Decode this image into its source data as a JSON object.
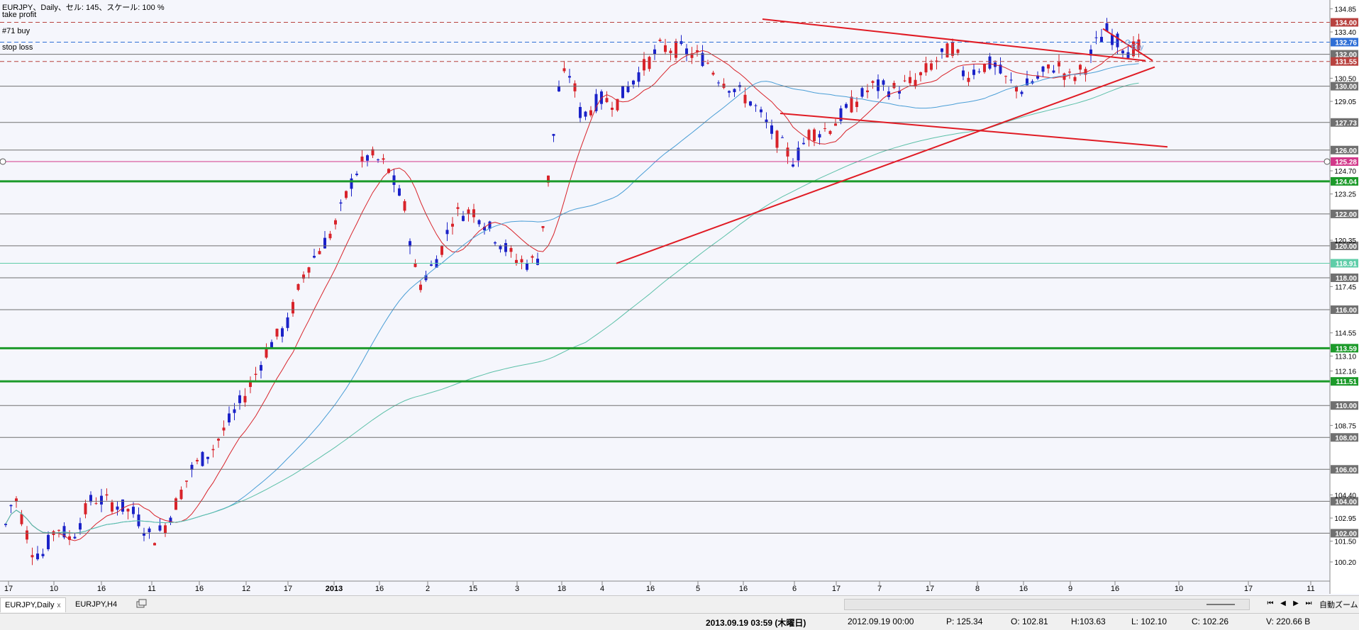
{
  "header": {
    "title": "EURJPY、Daily、セル: 145、スケール: 100 %",
    "take_profit_label": "take profit",
    "order_label": "#71 buy",
    "stop_loss_label": "stop loss",
    "order_marker_label": "Buy"
  },
  "chart_data": {
    "type": "candlestick",
    "symbol": "EURJPY",
    "timeframe": "Daily",
    "ylim": [
      99.0,
      135.4
    ],
    "y_ticks": [
      "134.85",
      "133.40",
      "130.50",
      "129.05",
      "124.70",
      "123.25",
      "120.35",
      "117.45",
      "114.55",
      "113.10",
      "112.16",
      "108.75",
      "104.40",
      "102.95",
      "101.50",
      "100.20"
    ],
    "x_labels": [
      "17",
      "10",
      "16",
      "11",
      "16",
      "12",
      "17",
      "2013",
      "16",
      "2",
      "15",
      "3",
      "18",
      "4",
      "16",
      "5",
      "16",
      "6",
      "17",
      "7",
      "17",
      "8",
      "16",
      "9",
      "16",
      "10",
      "17",
      "11"
    ],
    "horizontal_levels": [
      {
        "value": 134.0,
        "label": "134.00",
        "color": "#b8423f",
        "style": "dashed",
        "name": "take profit"
      },
      {
        "value": 132.76,
        "label": "132.76",
        "color": "#2f6fd6",
        "style": "dashed",
        "name": "#71 buy"
      },
      {
        "value": 132.0,
        "label": "132.00",
        "color": "#707070",
        "style": "solid"
      },
      {
        "value": 131.55,
        "label": "131.55",
        "color": "#b8423f",
        "style": "dashed",
        "name": "stop loss"
      },
      {
        "value": 130.0,
        "label": "130.00",
        "color": "#707070",
        "style": "solid"
      },
      {
        "value": 127.73,
        "label": "127.73",
        "color": "#707070",
        "style": "solid"
      },
      {
        "value": 126.0,
        "label": "126.00",
        "color": "#707070",
        "style": "solid"
      },
      {
        "value": 125.28,
        "label": "125.28",
        "color": "#d2388a",
        "style": "solid"
      },
      {
        "value": 124.04,
        "label": "124.04",
        "color": "#1c9a2a",
        "style": "thick"
      },
      {
        "value": 122.0,
        "label": "122.00",
        "color": "#707070",
        "style": "solid"
      },
      {
        "value": 120.0,
        "label": "120.00",
        "color": "#707070",
        "style": "solid"
      },
      {
        "value": 118.91,
        "label": "118.91",
        "color": "#5fcda8",
        "style": "solid"
      },
      {
        "value": 118.0,
        "label": "118.00",
        "color": "#707070",
        "style": "solid"
      },
      {
        "value": 116.0,
        "label": "116.00",
        "color": "#707070",
        "style": "solid"
      },
      {
        "value": 113.59,
        "label": "113.59",
        "color": "#1c9a2a",
        "style": "thick"
      },
      {
        "value": 111.51,
        "label": "111.51",
        "color": "#1c9a2a",
        "style": "thick"
      },
      {
        "value": 110.0,
        "label": "110.00",
        "color": "#707070",
        "style": "solid"
      },
      {
        "value": 108.0,
        "label": "108.00",
        "color": "#707070",
        "style": "solid"
      },
      {
        "value": 106.0,
        "label": "106.00",
        "color": "#707070",
        "style": "solid"
      },
      {
        "value": 104.0,
        "label": "104.00",
        "color": "#707070",
        "style": "solid"
      },
      {
        "value": 102.0,
        "label": "102.00",
        "color": "#707070",
        "style": "solid"
      }
    ],
    "trendlines": [
      {
        "from": [
          "4",
          118.9
        ],
        "to": [
          "10",
          131.2
        ]
      },
      {
        "from": [
          "16",
          134.2
        ],
        "to": [
          "10",
          131.6
        ]
      },
      {
        "from": [
          "16",
          128.3
        ],
        "to": [
          "10",
          126.2
        ]
      },
      {
        "from": [
          "9",
          133.6
        ],
        "to": [
          "10",
          131.6
        ]
      }
    ],
    "last_candle": {
      "date": "2013.09.19 03:59 (木曜日)",
      "open": 102.81,
      "high": 103.63,
      "low": 102.1,
      "close": 102.26
    }
  },
  "tabs": [
    {
      "label": "EURJPY,Daily",
      "close": "x",
      "active": true
    },
    {
      "label": "EURJPY,H4",
      "active": false
    }
  ],
  "status": {
    "datetime": "2013.09.19 03:59 (木曜日)",
    "bar_time": "2012.09.19 00:00",
    "price": "P: 125.34",
    "open": "O: 102.81",
    "high": "H:103.63",
    "low": "L: 102.10",
    "close": "C: 102.26",
    "volume": "V: 220.66 B",
    "zoom_label": "自動ズーム"
  },
  "colors": {
    "bull": "#1b22c8",
    "bear": "#d8232a",
    "ma_fast": "#d8232a",
    "ma_mid": "#4a9ed6",
    "ma_slow": "#5cc0a8",
    "trend": "#e01b24"
  }
}
